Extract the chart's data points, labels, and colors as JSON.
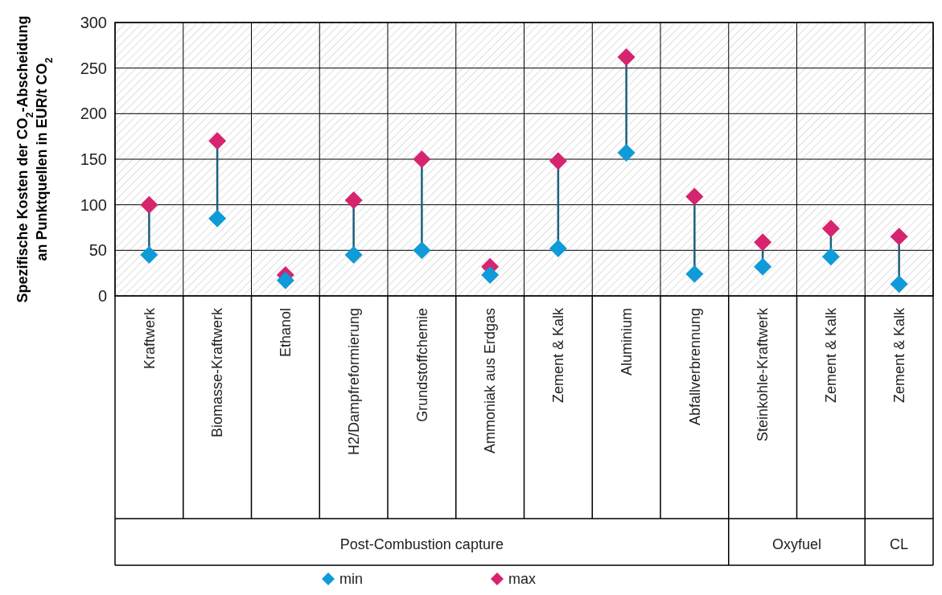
{
  "chart_data": {
    "type": "scatter",
    "ylabel": "Spezifische Kosten der CO$_{2}$-Abscheidung an Punktquellen in EUR/t CO$_{2}$",
    "categories": [
      "Kraftwerk",
      "Biomasse-Kraftwerk",
      "Ethanol",
      "H2/Dampfreformierung",
      "Grundstoffchemie",
      "Ammoniak aus Erdgas",
      "Zement & Kalk",
      "Aluminium",
      "Abfallverbrennung",
      "Steinkohle-Kraftwerk",
      "Zement & Kalk",
      "Zement & Kalk"
    ],
    "series": [
      {
        "name": "min",
        "color": "#0f9bd7",
        "values": [
          45,
          85,
          17,
          45,
          50,
          23,
          52,
          157,
          24,
          32,
          43,
          13
        ]
      },
      {
        "name": "max",
        "color": "#d6246e",
        "values": [
          100,
          170,
          23,
          105,
          150,
          32,
          148,
          262,
          109,
          59,
          74,
          65
        ]
      }
    ],
    "ylim": [
      0,
      300
    ],
    "yticks": [
      0,
      50,
      100,
      150,
      200,
      250,
      300
    ],
    "annotations": [
      "Post-Combustion capture",
      "Oxyfuel",
      "CL"
    ],
    "grid": true,
    "legend": "bottom",
    "marker": "diamond"
  }
}
